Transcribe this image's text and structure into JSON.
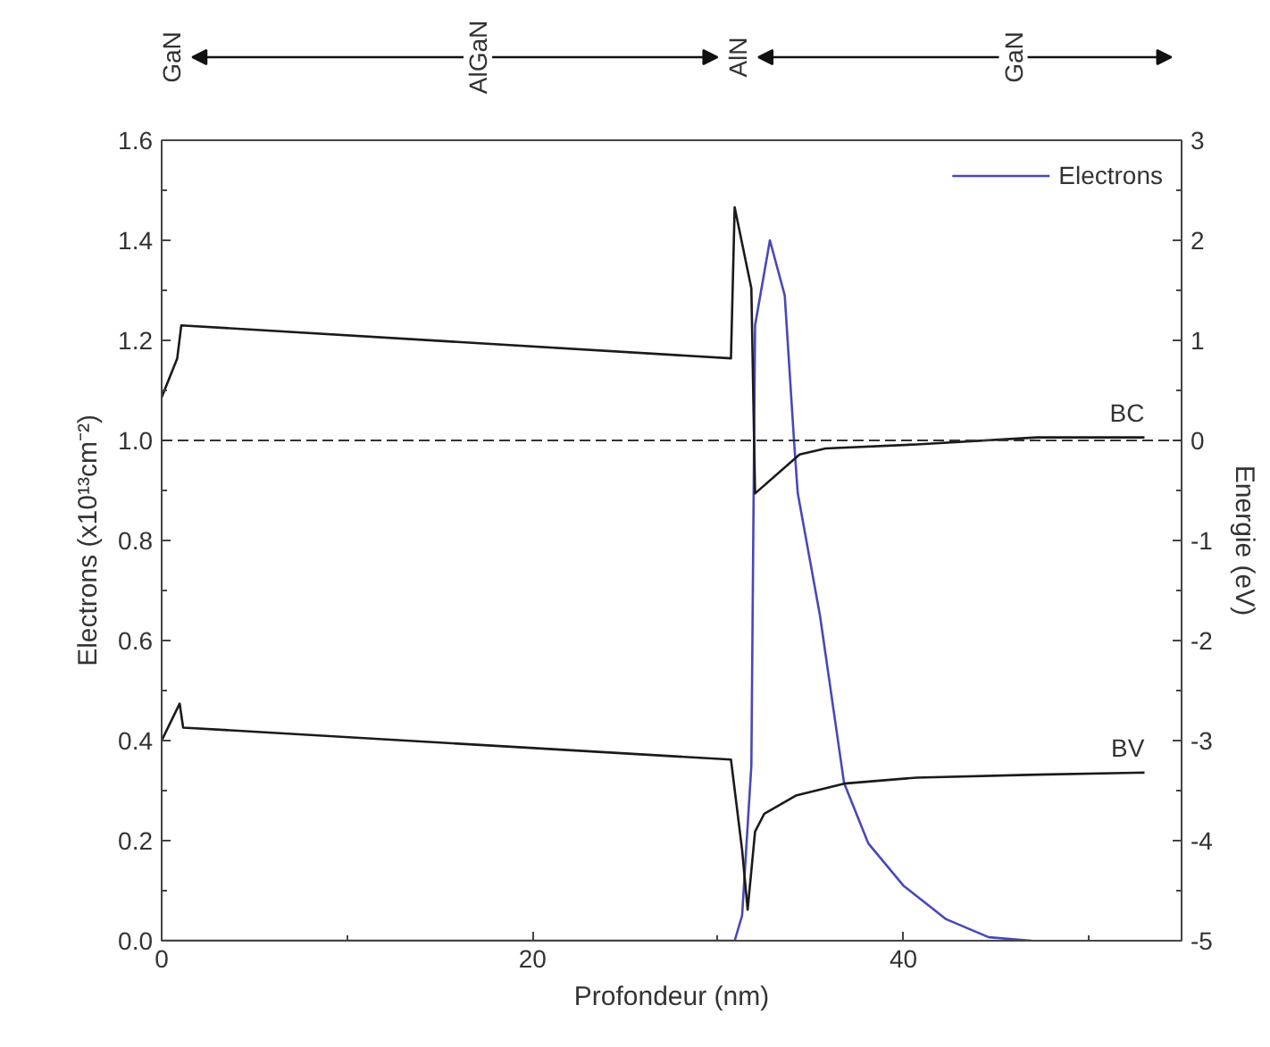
{
  "chart_data": {
    "type": "line",
    "xlabel": "Profondeur (nm)",
    "ylabel": "Electrons (x10¹³cm⁻²)",
    "y2label": "Energie (eV)",
    "xlim": [
      0,
      55
    ],
    "ylim": [
      0,
      1.6
    ],
    "y2lim": [
      -5,
      3
    ],
    "xticks": [
      0,
      {
        "value": 10,
        "label": null
      },
      20,
      {
        "value": 30,
        "label": null
      },
      40,
      {
        "value": 50,
        "label": null
      }
    ],
    "yticks": [
      {
        "value": 0,
        "label": "0.0"
      },
      {
        "value": 0.1,
        "label": null
      },
      {
        "value": 0.2,
        "label": "0.2"
      },
      {
        "value": 0.3,
        "label": null
      },
      {
        "value": 0.4,
        "label": "0.4"
      },
      {
        "value": 0.5,
        "label": null
      },
      {
        "value": 0.6,
        "label": "0.6"
      },
      {
        "value": 0.7,
        "label": null
      },
      {
        "value": 0.8,
        "label": "0.8"
      },
      {
        "value": 0.9,
        "label": null
      },
      {
        "value": 1.0,
        "label": "1.0"
      },
      {
        "value": 1.1,
        "label": null
      },
      {
        "value": 1.2,
        "label": "1.2"
      },
      {
        "value": 1.3,
        "label": null
      },
      {
        "value": 1.4,
        "label": "1.4"
      },
      {
        "value": 1.5,
        "label": null
      },
      {
        "value": 1.6,
        "label": "1.6"
      }
    ],
    "y2ticks": [
      -5,
      {
        "value": -4.5,
        "label": null
      },
      -4,
      {
        "value": -3.5,
        "label": null
      },
      -3,
      {
        "value": -2.5,
        "label": null
      },
      -2,
      {
        "value": -1.5,
        "label": null
      },
      -1,
      {
        "value": -0.5,
        "label": null
      },
      0,
      {
        "value": 0.5,
        "label": null
      },
      1,
      {
        "value": 1.5,
        "label": null
      },
      2,
      {
        "value": 2.5,
        "label": null
      },
      3
    ],
    "grid": false,
    "legend": "top right",
    "marker": "none",
    "line_style": "solid",
    "series": [
      {
        "name": "Electrons",
        "color": "#4848b8",
        "x": [
          0,
          29.7,
          30.9,
          31.3,
          31.8,
          32.0,
          32.8,
          33.6,
          34.1,
          34.3,
          35.5,
          36.8,
          38.1,
          40.0,
          42.3,
          44.6,
          46.9
        ],
        "values": [
          0,
          0,
          0,
          0.05,
          0.35,
          1.23,
          1.4,
          1.29,
          1.0,
          0.895,
          0.65,
          0.315,
          0.195,
          0.11,
          0.043,
          0.007,
          0
        ]
      },
      {
        "name": "BC",
        "axis": "y2",
        "color": "#1a1a1a",
        "x": [
          0,
          0.84,
          1.06,
          30.7,
          30.9,
          31.8,
          32.0,
          34.4,
          35.8,
          40.7,
          47.2,
          53
        ],
        "values": [
          0.43,
          0.82,
          1.15,
          0.82,
          2.33,
          1.52,
          -0.53,
          -0.14,
          -0.08,
          -0.04,
          0.03,
          0.03
        ]
      },
      {
        "name": "BV",
        "axis": "y2",
        "color": "#1a1a1a",
        "x": [
          0,
          0.97,
          1.16,
          30.7,
          31.3,
          31.6,
          32.0,
          32.5,
          34.2,
          36.8,
          40.7,
          47.2,
          53
        ],
        "values": [
          -3.0,
          -2.63,
          -2.87,
          -3.19,
          -4.09,
          -4.69,
          -3.91,
          -3.73,
          -3.55,
          -3.43,
          -3.37,
          -3.34,
          -3.32
        ]
      }
    ],
    "ref_lines": [
      {
        "axis": "y2",
        "value": 0,
        "color": "#333333",
        "line_style": "dashed"
      }
    ],
    "annotations": [
      "GaN",
      "AlGaN",
      "AlN",
      "GaN"
    ]
  }
}
